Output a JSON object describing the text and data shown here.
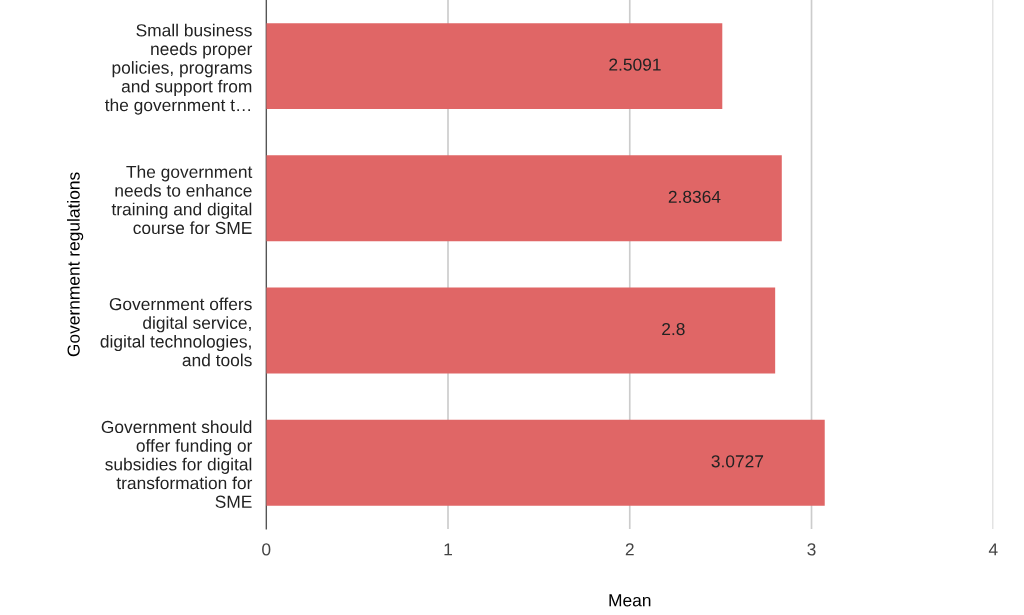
{
  "chart_data": {
    "type": "bar",
    "orientation": "horizontal",
    "xlabel": "Mean",
    "ylabel": "Government regulations",
    "categories": [
      "Small business\nneeds proper\npolicies, programs\nand support from\nthe government t…",
      "The government\nneeds to enhance\ntraining and digital\ncourse for SME",
      "Government offers\ndigital service,\ndigital technologies,\nand tools",
      "Government should\noffer funding or\nsubsidies for digital\ntransformation for\nSME"
    ],
    "values": [
      2.5091,
      2.8364,
      2.8,
      3.0727
    ],
    "color": "#e06666",
    "xlim": [
      0,
      4
    ],
    "xticks": [
      0,
      1,
      2,
      3,
      4
    ],
    "grid": "x",
    "data_labels": true
  }
}
